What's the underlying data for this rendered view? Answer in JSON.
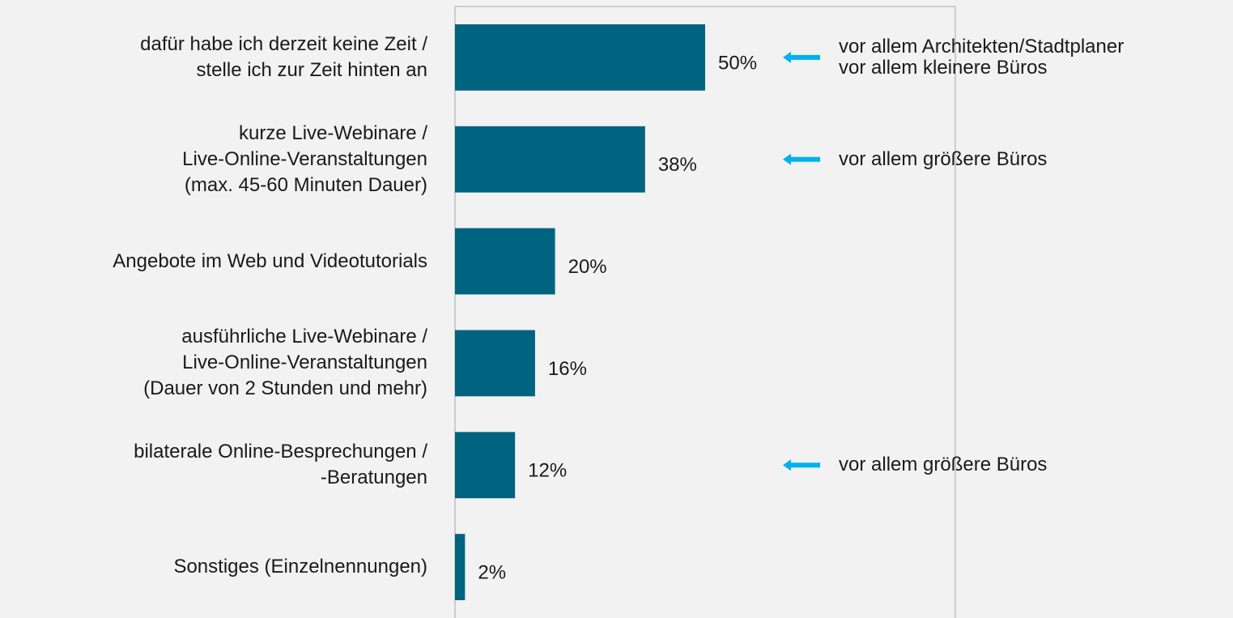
{
  "chart_data": {
    "type": "bar",
    "orientation": "horizontal",
    "categories": [
      "dafür habe ich derzeit keine Zeit /\nstelle ich zur Zeit hinten an",
      "kurze Live-Webinare /\nLive-Online-Veranstaltungen\n(max. 45-60 Minuten Dauer)",
      "Angebote im Web und Videotutorials",
      "ausführliche Live-Webinare /\nLive-Online-Veranstaltungen\n(Dauer von 2 Stunden und mehr)",
      "bilaterale Online-Besprechungen /\n-Beratungen",
      "Sonstiges (Einzelnennungen)"
    ],
    "values": [
      50,
      38,
      20,
      16,
      12,
      2
    ],
    "value_labels": [
      "50%",
      "38%",
      "20%",
      "16%",
      "12%",
      "2%"
    ],
    "annotations": [
      "vor allem Architekten/Stadtplaner\nvor allem kleinere Büros",
      "vor allem größere Büros",
      null,
      null,
      "vor allem größere Büros",
      null
    ],
    "color": "#006481",
    "annotation_arrow_color": "#00b0f0",
    "xlim": [
      0,
      100
    ]
  }
}
